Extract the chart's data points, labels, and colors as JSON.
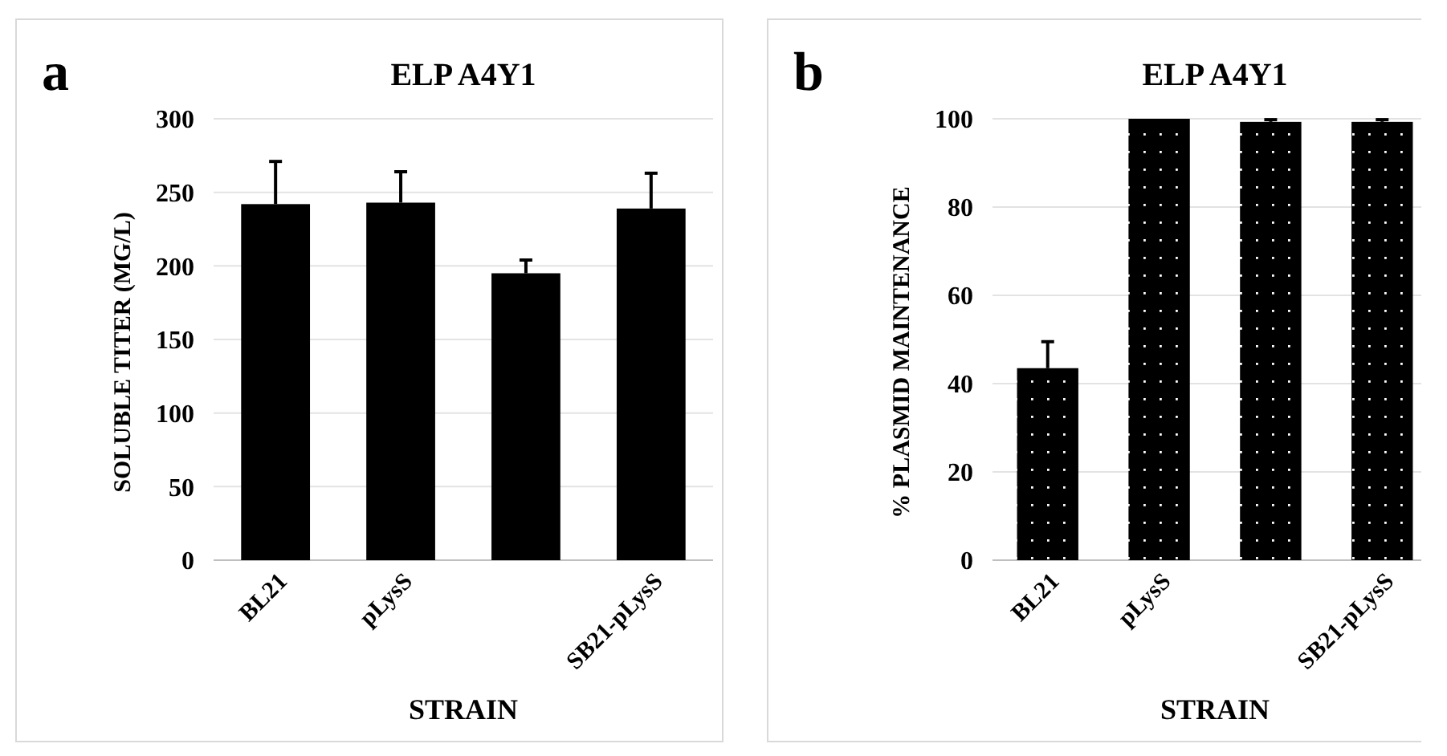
{
  "chart_data": [
    {
      "type": "bar",
      "title": "ELP A4Y1",
      "annotations": [
        "a"
      ],
      "xlabel": "STRAIN",
      "ylabel": "SOLUBLE TITER (MG/L)",
      "categories": [
        "BL21",
        "pLysS",
        null,
        "SB21-pLysS"
      ],
      "values": [
        242,
        243,
        195,
        239
      ],
      "errors": [
        29,
        21,
        9,
        24
      ],
      "color": "#000000",
      "ylim": [
        0,
        300
      ],
      "yticks": [
        0,
        50,
        100,
        150,
        200,
        250,
        300
      ],
      "grid": "y"
    },
    {
      "type": "bar",
      "title": "ELP A4Y1",
      "annotations": [
        "b"
      ],
      "xlabel": "STRAIN",
      "ylabel": "% PLASMID MAINTENANCE",
      "categories": [
        "BL21",
        "pLysS",
        null,
        "SB21-pLysS"
      ],
      "values": [
        43.5,
        100,
        99.3,
        99.3
      ],
      "errors": [
        6,
        0,
        0.5,
        0.5
      ],
      "color": "#000000",
      "ylim": [
        0,
        100
      ],
      "yticks": [
        0,
        20,
        40,
        60,
        80,
        100
      ],
      "grid": "y"
    }
  ]
}
